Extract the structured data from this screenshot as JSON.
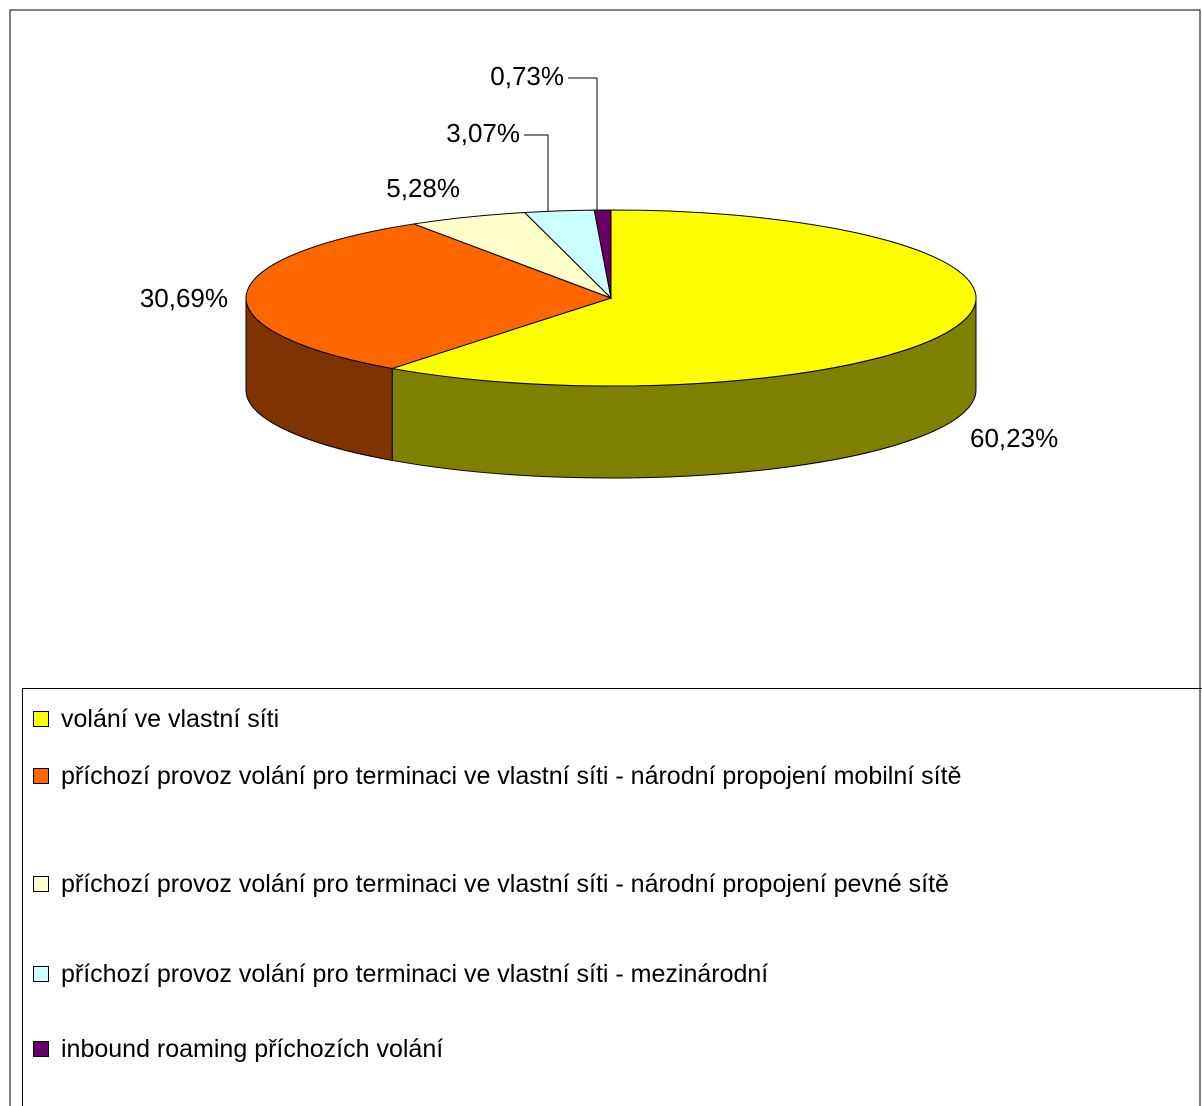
{
  "chart_data": {
    "type": "pie",
    "categories": [
      "volání ve vlastní síti",
      "příchozí provoz volání pro terminaci ve vlastní síti - národní propojení mobilní sítě",
      "příchozí provoz volání pro terminaci ve vlastní síti - národní propojení pevné sítě",
      "příchozí provoz volání pro terminaci ve vlastní síti - mezinárodní",
      "inbound roaming příchozích volání"
    ],
    "values": [
      60.23,
      30.69,
      5.28,
      3.07,
      0.73
    ],
    "value_labels": [
      "60,23%",
      "30,69%",
      "5,28%",
      "3,07%",
      "0,73%"
    ],
    "colors": [
      "#ffff00",
      "#ff6600",
      "#ffffcc",
      "#ccffff",
      "#660066"
    ]
  }
}
